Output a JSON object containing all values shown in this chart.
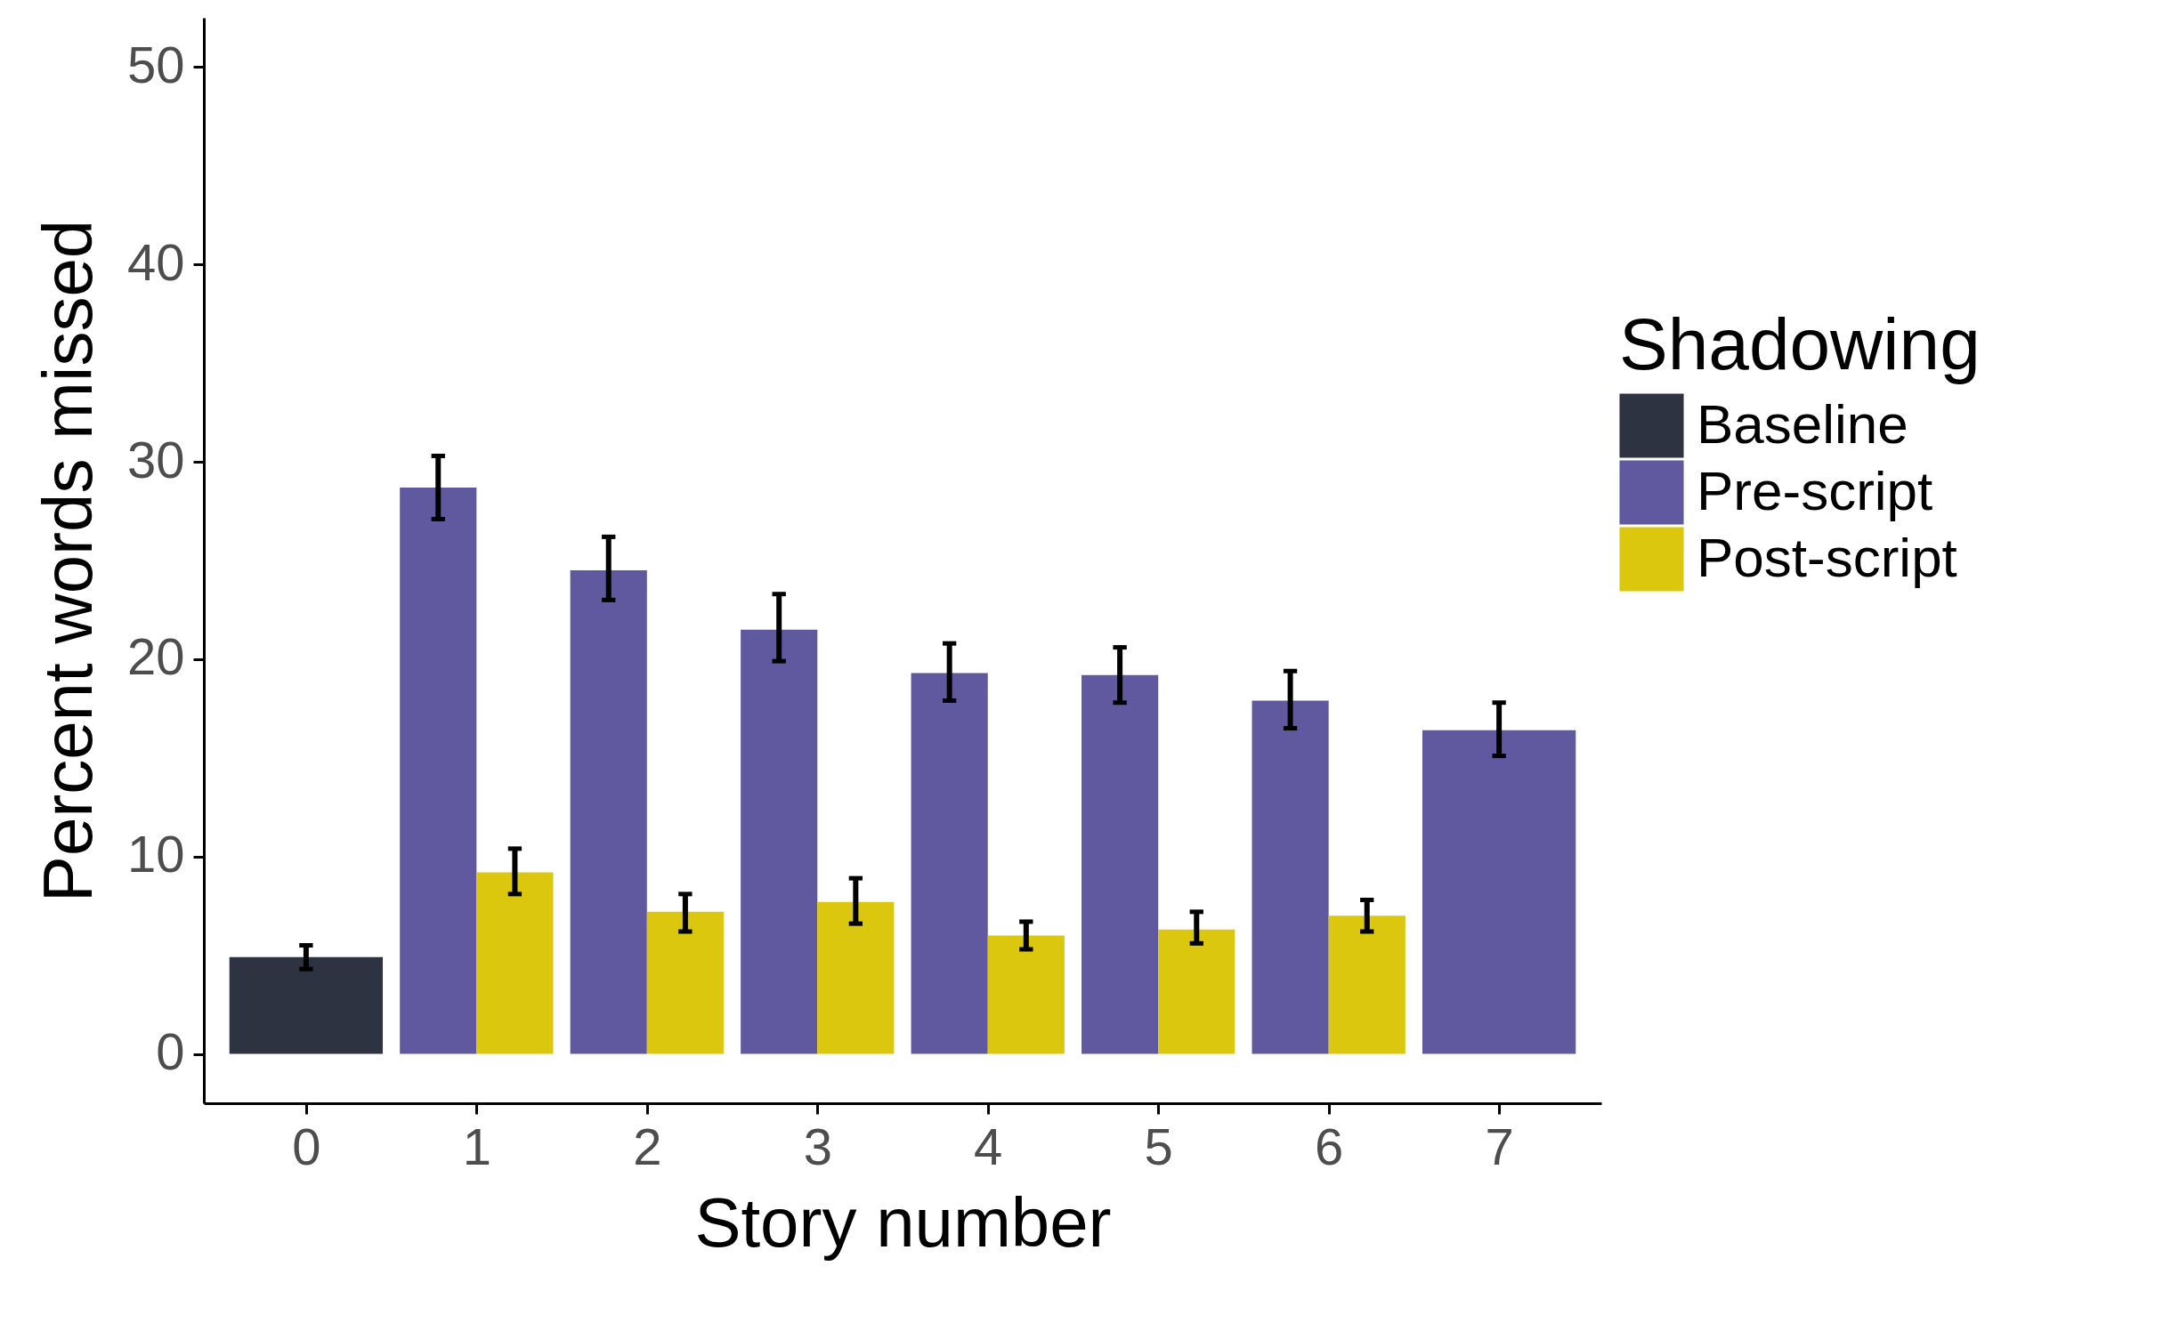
{
  "chart_data": {
    "type": "bar",
    "xlabel": "Story number",
    "ylabel": "Percent words missed",
    "legend_title": "Shadowing",
    "categories": [
      "0",
      "1",
      "2",
      "3",
      "4",
      "5",
      "6",
      "7"
    ],
    "series": [
      {
        "name": "Baseline",
        "color": "#2d3340",
        "values": [
          4.9,
          null,
          null,
          null,
          null,
          null,
          null,
          null
        ],
        "errors": [
          [
            4.3,
            5.5
          ],
          null,
          null,
          null,
          null,
          null,
          null,
          null
        ]
      },
      {
        "name": "Pre-script",
        "color": "#6159a0",
        "values": [
          null,
          28.7,
          24.5,
          21.5,
          19.3,
          19.2,
          17.9,
          16.4
        ],
        "errors": [
          null,
          [
            27.1,
            30.3
          ],
          [
            23.0,
            26.2
          ],
          [
            19.9,
            23.3
          ],
          [
            17.9,
            20.8
          ],
          [
            17.8,
            20.6
          ],
          [
            16.5,
            19.4
          ],
          [
            15.1,
            17.8
          ]
        ]
      },
      {
        "name": "Post-script",
        "color": "#dcc70f",
        "values": [
          null,
          9.2,
          7.2,
          7.7,
          6.0,
          6.3,
          7.0,
          null
        ],
        "errors": [
          null,
          [
            8.1,
            10.4
          ],
          [
            6.2,
            8.1
          ],
          [
            6.6,
            8.9
          ],
          [
            5.3,
            6.7
          ],
          [
            5.6,
            7.2
          ],
          [
            6.2,
            7.8
          ],
          null
        ]
      }
    ],
    "ylim": [
      -2.5,
      52.5
    ],
    "yticks": [
      0,
      10,
      20,
      30,
      40,
      50
    ],
    "grid": false,
    "legend": "right"
  }
}
